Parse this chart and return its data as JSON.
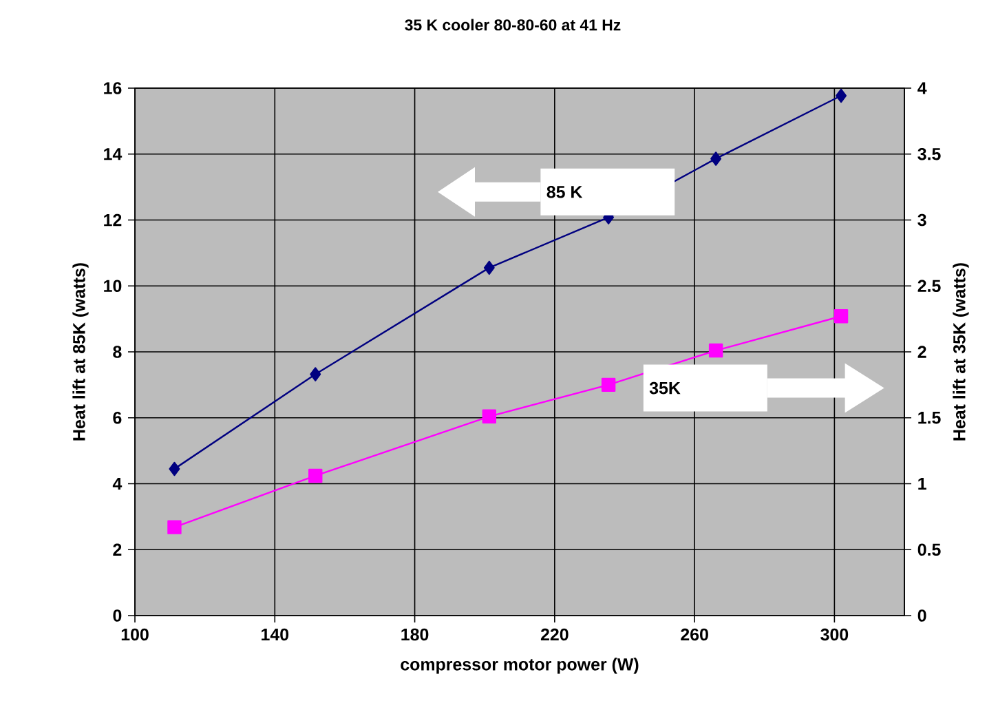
{
  "chart_data": {
    "type": "line",
    "title": "35 K cooler 80-80-60 at 41 Hz",
    "xlabel": "compressor motor power (W)",
    "ylabel": "Heat lift at 85K (watts)",
    "y2label": "Heat lift at 35K (watts)",
    "x": [
      111.3,
      151.6,
      201.3,
      235.4,
      266.1,
      301.9
    ],
    "series": [
      {
        "color": "#000080",
        "marker": "diamond",
        "values": [
          4.45,
          7.32,
          10.55,
          12.08,
          13.86,
          15.77
        ]
      },
      {
        "color": "#ff00ff",
        "marker": "square",
        "axis": "y2",
        "values": [
          0.67,
          1.06,
          1.51,
          1.75,
          2.01,
          2.27
        ]
      }
    ],
    "xlim": [
      100,
      320
    ],
    "xticks": [
      100,
      140,
      180,
      220,
      260,
      300
    ],
    "ylim": [
      0,
      16
    ],
    "yticks": [
      0,
      2,
      4,
      6,
      8,
      10,
      12,
      14,
      16
    ],
    "y2lim": [
      0,
      4
    ],
    "y2ticks": [
      0,
      0.5,
      1,
      1.5,
      2,
      2.5,
      3,
      3.5,
      4
    ],
    "grid": true,
    "annotations": [
      "85 K",
      "35K"
    ]
  }
}
